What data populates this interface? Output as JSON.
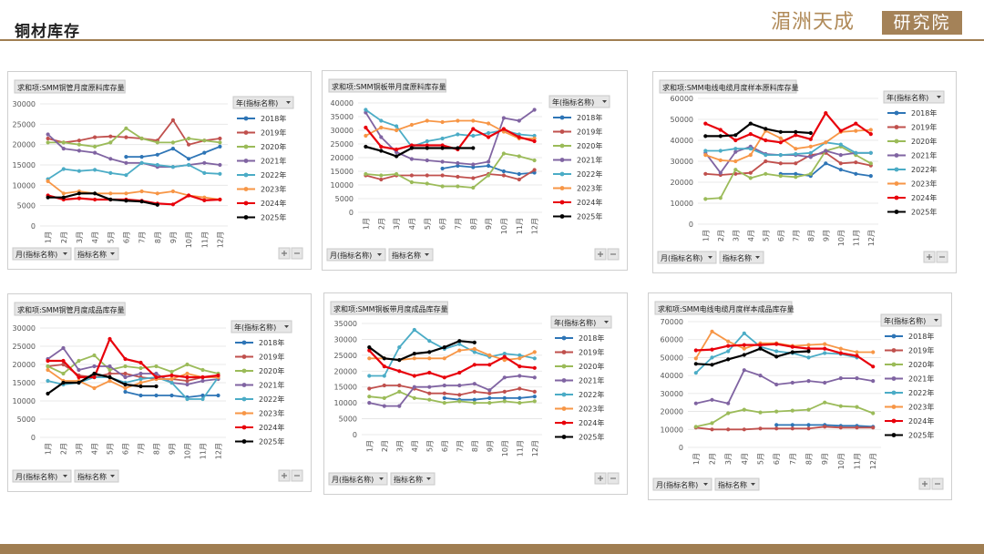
{
  "page": {
    "title": "铜材库存",
    "logo_script": "湄洲天成",
    "logo_box": "研究院"
  },
  "colors": {
    "brand": "#a07e52",
    "series": {
      "2018年": "#2e75b6",
      "2019年": "#c0504d",
      "2020年": "#9bbb59",
      "2021年": "#8064a2",
      "2022年": "#4bacc6",
      "2023年": "#f79646",
      "2024年": "#e8000b",
      "2025年": "#000000"
    }
  },
  "chart_data": [
    {
      "type": "line",
      "title": "求和项:SMM铜管月度原料库存量",
      "legend_title": "年(指标名称)",
      "x_filter": "月(指标名称)",
      "series_filter": "指标名称",
      "categories": [
        "1月",
        "2月",
        "3月",
        "4月",
        "5月",
        "6月",
        "7月",
        "8月",
        "9月",
        "10月",
        "11月",
        "12月"
      ],
      "ylim": [
        0,
        30000
      ],
      "yticks": [
        0,
        5000,
        10000,
        15000,
        20000,
        25000,
        30000
      ],
      "series": [
        {
          "name": "2018年",
          "values": [
            null,
            null,
            null,
            null,
            null,
            17000,
            17000,
            17500,
            19000,
            16500,
            18000,
            19500
          ]
        },
        {
          "name": "2019年",
          "values": [
            21500,
            20500,
            21000,
            21800,
            22000,
            21800,
            21500,
            21000,
            26000,
            20000,
            21000,
            21500
          ]
        },
        {
          "name": "2020年",
          "values": [
            20500,
            20500,
            20000,
            19500,
            20500,
            24000,
            21500,
            20500,
            20500,
            21500,
            21000,
            20500
          ]
        },
        {
          "name": "2021年",
          "values": [
            22500,
            19000,
            18500,
            18000,
            16500,
            15500,
            15500,
            14500,
            14500,
            15000,
            15500,
            15000
          ]
        },
        {
          "name": "2022年",
          "values": [
            11500,
            14000,
            13500,
            13800,
            13000,
            12500,
            15500,
            15000,
            14500,
            15000,
            13000,
            12800
          ]
        },
        {
          "name": "2023年",
          "values": [
            11000,
            8000,
            8500,
            8000,
            8000,
            8000,
            8500,
            8000,
            8500,
            7500,
            7000,
            6500
          ]
        },
        {
          "name": "2024年",
          "values": [
            7500,
            6500,
            6800,
            6500,
            6500,
            6500,
            6200,
            5500,
            5300,
            7500,
            6300,
            6500
          ]
        },
        {
          "name": "2025年",
          "values": [
            7000,
            7000,
            8000,
            8000,
            6500,
            6200,
            6000,
            5200,
            null,
            null,
            null,
            null
          ]
        }
      ]
    },
    {
      "type": "line",
      "title": "求和项:SMM铜板带月度原料库存量",
      "legend_title": "年(指标名称)",
      "x_filter": "月(指标名称)",
      "series_filter": "指标名称",
      "categories": [
        "1月",
        "2月",
        "3月",
        "4月",
        "5月",
        "6月",
        "7月",
        "8月",
        "9月",
        "10月",
        "11月",
        "12月"
      ],
      "ylim": [
        0,
        40000
      ],
      "yticks": [
        0,
        5000,
        10000,
        15000,
        20000,
        25000,
        30000,
        35000,
        40000
      ],
      "series": [
        {
          "name": "2018年",
          "values": [
            null,
            null,
            null,
            null,
            null,
            16000,
            17000,
            16500,
            17000,
            15000,
            14000,
            14500
          ]
        },
        {
          "name": "2019年",
          "values": [
            13500,
            12000,
            13500,
            13500,
            13500,
            13500,
            13000,
            12500,
            14000,
            13500,
            12000,
            15500
          ]
        },
        {
          "name": "2020年",
          "values": [
            14000,
            13500,
            14000,
            11000,
            10500,
            9500,
            9500,
            9000,
            13500,
            21500,
            20500,
            19000
          ]
        },
        {
          "name": "2021年",
          "values": [
            36500,
            27500,
            22000,
            19500,
            19000,
            18500,
            18000,
            17500,
            18500,
            34500,
            33500,
            37500
          ]
        },
        {
          "name": "2022年",
          "values": [
            37500,
            33500,
            31500,
            24000,
            26000,
            27000,
            28500,
            28000,
            29000,
            30000,
            28500,
            28000
          ]
        },
        {
          "name": "2023年",
          "values": [
            28000,
            31000,
            30000,
            32000,
            33500,
            33000,
            33500,
            33500,
            32500,
            29500,
            27000,
            27000
          ]
        },
        {
          "name": "2024年",
          "values": [
            31000,
            24000,
            23000,
            24500,
            24500,
            24500,
            23000,
            30500,
            27500,
            30500,
            27500,
            26000
          ]
        },
        {
          "name": "2025年",
          "values": [
            24000,
            22500,
            20500,
            23500,
            23500,
            23500,
            23500,
            23500,
            null,
            null,
            null,
            null
          ]
        }
      ]
    },
    {
      "type": "line",
      "title": "求和项:SMM电线电缆月度样本原料库存量",
      "legend_title": "年(指标名称)",
      "x_filter": "月(指标名称)",
      "series_filter": "指标名称",
      "categories": [
        "1月",
        "2月",
        "3月",
        "4月",
        "5月",
        "6月",
        "7月",
        "8月",
        "9月",
        "10月",
        "11月",
        "12月"
      ],
      "ylim": [
        0,
        60000
      ],
      "yticks": [
        0,
        10000,
        20000,
        30000,
        40000,
        50000,
        60000
      ],
      "series": [
        {
          "name": "2018年",
          "values": [
            null,
            null,
            null,
            null,
            null,
            24000,
            24000,
            23000,
            29000,
            26000,
            24000,
            23000
          ]
        },
        {
          "name": "2019年",
          "values": [
            24000,
            23500,
            24000,
            24500,
            30000,
            29000,
            29000,
            33000,
            34000,
            29000,
            29500,
            28000
          ]
        },
        {
          "name": "2020年",
          "values": [
            12000,
            12500,
            26000,
            22000,
            24000,
            23000,
            22500,
            24000,
            35000,
            37000,
            33000,
            29000
          ]
        },
        {
          "name": "2021年",
          "values": [
            34000,
            24500,
            34500,
            37000,
            33500,
            33000,
            33000,
            32000,
            35000,
            33000,
            34000,
            34000
          ]
        },
        {
          "name": "2022年",
          "values": [
            35000,
            35000,
            36000,
            36000,
            33000,
            33000,
            33500,
            34000,
            39000,
            38000,
            34000,
            34000
          ]
        },
        {
          "name": "2023年",
          "values": [
            33000,
            30500,
            30000,
            33000,
            44500,
            41000,
            36000,
            37000,
            39000,
            44000,
            44500,
            45000
          ]
        },
        {
          "name": "2024年",
          "values": [
            48000,
            45000,
            40000,
            43000,
            40000,
            39000,
            42500,
            40500,
            53000,
            44500,
            48000,
            43000
          ]
        },
        {
          "name": "2025年",
          "values": [
            42000,
            42000,
            42500,
            48000,
            45500,
            44000,
            44000,
            43500,
            null,
            null,
            null,
            null
          ]
        }
      ]
    },
    {
      "type": "line",
      "title": "求和项:SMM铜管月度成品库存量",
      "legend_title": "年(指标名称)",
      "x_filter": "月(指标名称)",
      "series_filter": "指标名称",
      "categories": [
        "1月",
        "2月",
        "3月",
        "4月",
        "5月",
        "6月",
        "7月",
        "8月",
        "9月",
        "10月",
        "11月",
        "12月"
      ],
      "ylim": [
        0,
        30000
      ],
      "yticks": [
        0,
        5000,
        10000,
        15000,
        20000,
        25000,
        30000
      ],
      "series": [
        {
          "name": "2018年",
          "values": [
            null,
            null,
            null,
            null,
            null,
            12500,
            11500,
            11500,
            11500,
            11000,
            11500,
            11500
          ]
        },
        {
          "name": "2019年",
          "values": [
            19500,
            20000,
            17000,
            16500,
            17500,
            17500,
            16500,
            16000,
            16000,
            15500,
            16500,
            16500
          ]
        },
        {
          "name": "2020年",
          "values": [
            19500,
            17500,
            21000,
            22500,
            18500,
            19500,
            19000,
            19500,
            18000,
            20000,
            18500,
            17500
          ]
        },
        {
          "name": "2021年",
          "values": [
            21500,
            24500,
            18500,
            19500,
            19500,
            16500,
            17500,
            17500,
            15000,
            14500,
            15500,
            16000
          ]
        },
        {
          "name": "2022年",
          "values": [
            15500,
            14500,
            15000,
            16500,
            16500,
            15000,
            16000,
            16500,
            15000,
            10500,
            10500,
            16500
          ]
        },
        {
          "name": "2023年",
          "values": [
            18500,
            15500,
            15500,
            13500,
            15500,
            13500,
            15000,
            16000,
            16000,
            17500,
            16500,
            16500
          ]
        },
        {
          "name": "2024年",
          "values": [
            21000,
            21000,
            16500,
            16500,
            27000,
            21500,
            20500,
            16500,
            17000,
            16500,
            16500,
            17000
          ]
        },
        {
          "name": "2025年",
          "values": [
            12000,
            15000,
            15000,
            17500,
            16500,
            14500,
            14000,
            14000,
            null,
            null,
            null,
            null
          ]
        }
      ]
    },
    {
      "type": "line",
      "title": "求和项:SMM铜板带月度成品库存量",
      "legend_title": "年(指标名称)",
      "x_filter": "月(指标名称)",
      "series_filter": "指标名称",
      "categories": [
        "1月",
        "2月",
        "3月",
        "4月",
        "5月",
        "6月",
        "7月",
        "8月",
        "9月",
        "10月",
        "11月",
        "12月"
      ],
      "ylim": [
        0,
        35000
      ],
      "yticks": [
        0,
        5000,
        10000,
        15000,
        20000,
        25000,
        30000,
        35000
      ],
      "series": [
        {
          "name": "2018年",
          "values": [
            null,
            null,
            null,
            null,
            null,
            11500,
            11000,
            11000,
            11500,
            11500,
            11500,
            12000
          ]
        },
        {
          "name": "2019年",
          "values": [
            14500,
            15500,
            15500,
            14500,
            13000,
            13000,
            12500,
            13500,
            13000,
            13500,
            14500,
            13500
          ]
        },
        {
          "name": "2020年",
          "values": [
            12000,
            11500,
            13500,
            11500,
            11000,
            10000,
            10500,
            10000,
            10000,
            10500,
            10000,
            10500
          ]
        },
        {
          "name": "2021年",
          "values": [
            10000,
            9000,
            9000,
            15000,
            15000,
            15500,
            15500,
            16000,
            14000,
            18000,
            18500,
            18000
          ]
        },
        {
          "name": "2022年",
          "values": [
            18500,
            18500,
            27500,
            33000,
            29500,
            27000,
            28500,
            26000,
            24500,
            25500,
            25000,
            24000
          ]
        },
        {
          "name": "2023年",
          "values": [
            24000,
            24000,
            23500,
            24000,
            24000,
            24000,
            26500,
            27000,
            25000,
            23500,
            24000,
            26000
          ]
        },
        {
          "name": "2024年",
          "values": [
            26500,
            21500,
            20000,
            18500,
            19500,
            18000,
            19500,
            22000,
            22000,
            24500,
            21500,
            21000
          ]
        },
        {
          "name": "2025年",
          "values": [
            27500,
            24000,
            23500,
            25500,
            26000,
            27500,
            29500,
            29000,
            null,
            null,
            null,
            null
          ]
        }
      ]
    },
    {
      "type": "line",
      "title": "求和项:SMM电线电缆月度样本成品库存量",
      "legend_title": "年(指标名称)",
      "x_filter": "月(指标名称)",
      "series_filter": "指标名称",
      "categories": [
        "1月",
        "2月",
        "3月",
        "4月",
        "5月",
        "6月",
        "7月",
        "8月",
        "9月",
        "10月",
        "11月",
        "12月"
      ],
      "ylim": [
        0,
        70000
      ],
      "yticks": [
        0,
        10000,
        20000,
        30000,
        40000,
        50000,
        60000,
        70000
      ],
      "series": [
        {
          "name": "2018年",
          "values": [
            null,
            null,
            null,
            null,
            null,
            12500,
            12500,
            12500,
            12500,
            12000,
            12000,
            11500
          ]
        },
        {
          "name": "2019年",
          "values": [
            11000,
            10000,
            10000,
            10000,
            10500,
            10500,
            10500,
            10500,
            11500,
            11000,
            11000,
            11000
          ]
        },
        {
          "name": "2020年",
          "values": [
            11500,
            13500,
            19000,
            21000,
            19500,
            20000,
            20500,
            21000,
            25000,
            23000,
            22500,
            19000
          ]
        },
        {
          "name": "2021年",
          "values": [
            24500,
            26500,
            24500,
            43000,
            40000,
            35000,
            36000,
            37000,
            36000,
            38500,
            38500,
            37000
          ]
        },
        {
          "name": "2022年",
          "values": [
            41500,
            50000,
            53500,
            63500,
            56000,
            53500,
            52500,
            50000,
            52500,
            52000,
            50000,
            null
          ]
        },
        {
          "name": "2023年",
          "values": [
            49500,
            64500,
            59000,
            55000,
            58000,
            58000,
            56500,
            57000,
            57500,
            55000,
            53000,
            53000
          ]
        },
        {
          "name": "2024年",
          "values": [
            54000,
            54500,
            56500,
            57000,
            57000,
            57500,
            56000,
            55000,
            55000,
            52500,
            51000,
            45000
          ]
        },
        {
          "name": "2025年",
          "values": [
            46500,
            46000,
            49000,
            51500,
            55000,
            50500,
            53000,
            53500,
            null,
            null,
            null,
            null
          ]
        }
      ]
    }
  ]
}
